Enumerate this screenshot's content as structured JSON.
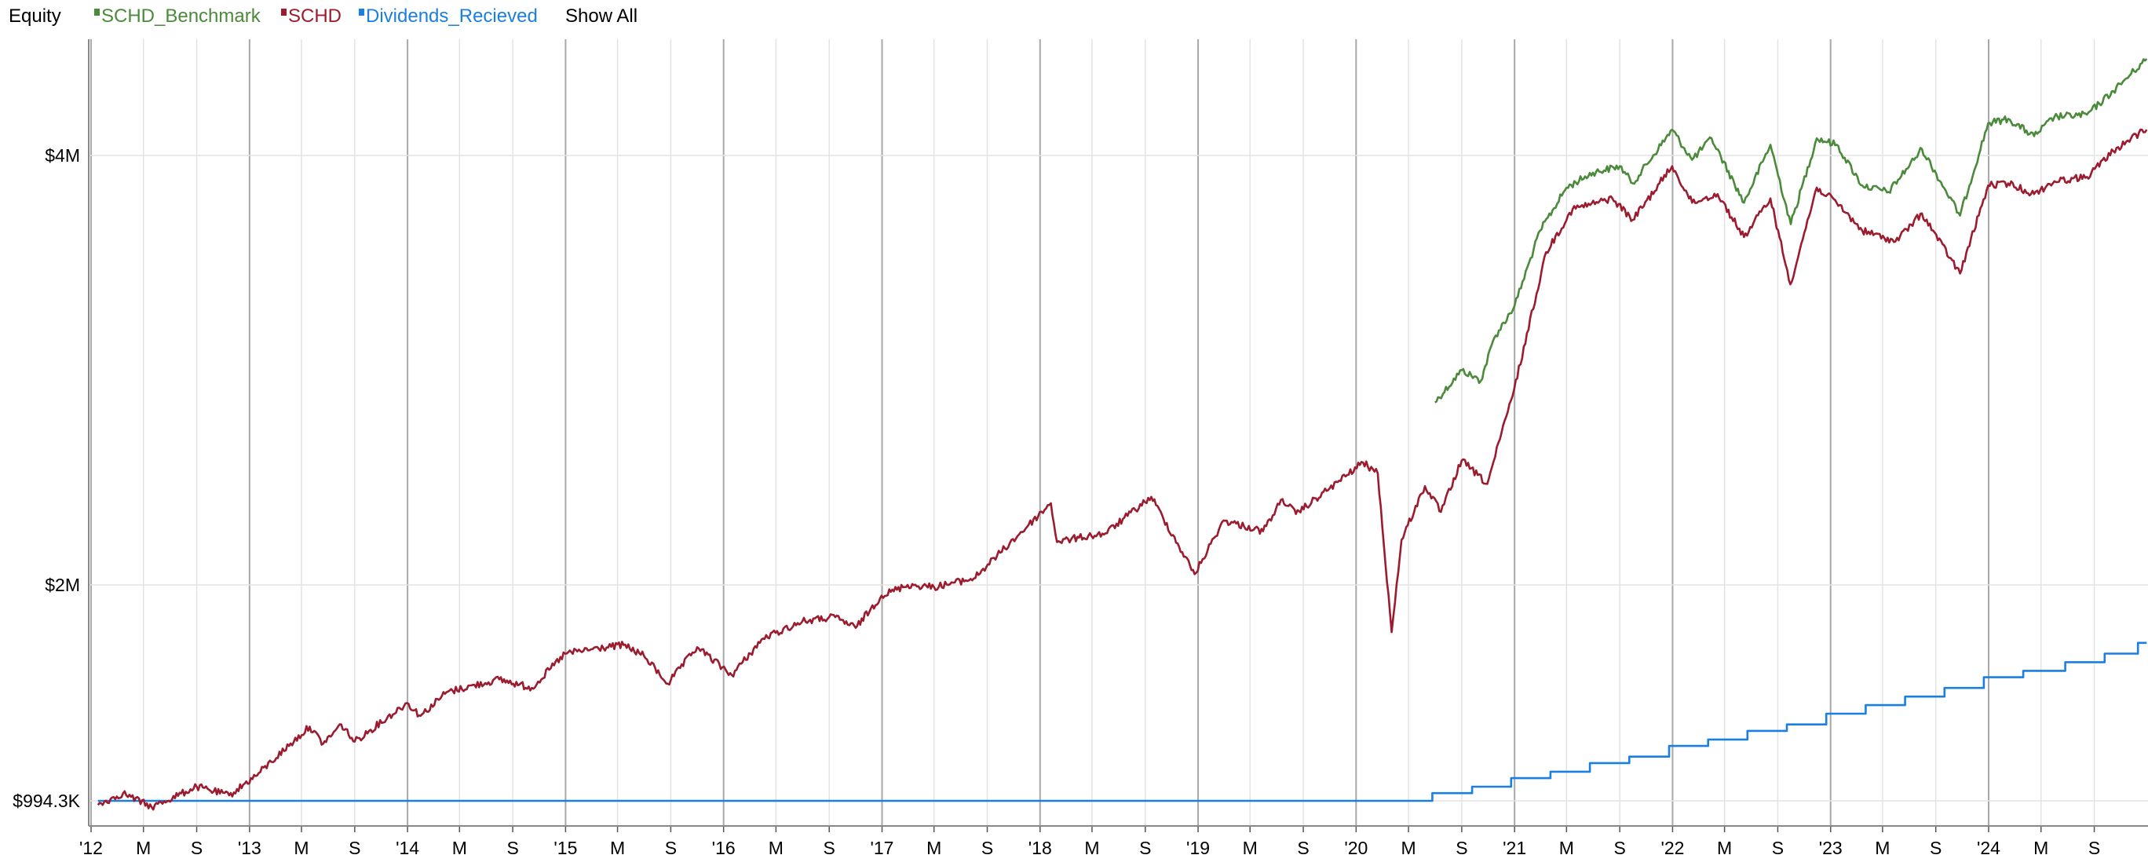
{
  "legend": {
    "title": "Equity",
    "items": [
      {
        "label": "SCHD_Benchmark",
        "color": "#4a8a3a"
      },
      {
        "label": "SCHD",
        "color": "#9b1c2e"
      },
      {
        "label": "Dividends_Recieved",
        "color": "#1a7fe0"
      }
    ],
    "show_all": "Show All"
  },
  "chart_data": {
    "type": "line",
    "title": "",
    "xlabel": "",
    "ylabel": "",
    "x_range": [
      "2012-01-17",
      "2024-12-31"
    ],
    "y_range": [
      950000,
      4350000
    ],
    "y_ticks": [
      {
        "value": 994300,
        "label": "$994.3K"
      },
      {
        "value": 2000000,
        "label": "$2M"
      },
      {
        "value": 4000000,
        "label": "$4M"
      }
    ],
    "x_ticks": [
      {
        "date": "2012-01-01",
        "label": "'12",
        "major": true
      },
      {
        "date": "2012-05-01",
        "label": "M",
        "major": false
      },
      {
        "date": "2012-09-01",
        "label": "S",
        "major": false
      },
      {
        "date": "2013-01-01",
        "label": "'13",
        "major": true
      },
      {
        "date": "2013-05-01",
        "label": "M",
        "major": false
      },
      {
        "date": "2013-09-01",
        "label": "S",
        "major": false
      },
      {
        "date": "2014-01-01",
        "label": "'14",
        "major": true
      },
      {
        "date": "2014-05-01",
        "label": "M",
        "major": false
      },
      {
        "date": "2014-09-01",
        "label": "S",
        "major": false
      },
      {
        "date": "2015-01-01",
        "label": "'15",
        "major": true
      },
      {
        "date": "2015-05-01",
        "label": "M",
        "major": false
      },
      {
        "date": "2015-09-01",
        "label": "S",
        "major": false
      },
      {
        "date": "2016-01-01",
        "label": "'16",
        "major": true
      },
      {
        "date": "2016-05-01",
        "label": "M",
        "major": false
      },
      {
        "date": "2016-09-01",
        "label": "S",
        "major": false
      },
      {
        "date": "2017-01-01",
        "label": "'17",
        "major": true
      },
      {
        "date": "2017-05-01",
        "label": "M",
        "major": false
      },
      {
        "date": "2017-09-01",
        "label": "S",
        "major": false
      },
      {
        "date": "2018-01-01",
        "label": "'18",
        "major": true
      },
      {
        "date": "2018-05-01",
        "label": "M",
        "major": false
      },
      {
        "date": "2018-09-01",
        "label": "S",
        "major": false
      },
      {
        "date": "2019-01-01",
        "label": "'19",
        "major": true
      },
      {
        "date": "2019-05-01",
        "label": "M",
        "major": false
      },
      {
        "date": "2019-09-01",
        "label": "S",
        "major": false
      },
      {
        "date": "2020-01-01",
        "label": "'20",
        "major": true
      },
      {
        "date": "2020-05-01",
        "label": "M",
        "major": false
      },
      {
        "date": "2020-09-01",
        "label": "S",
        "major": false
      },
      {
        "date": "2021-01-01",
        "label": "'21",
        "major": true
      },
      {
        "date": "2021-05-01",
        "label": "M",
        "major": false
      },
      {
        "date": "2021-09-01",
        "label": "S",
        "major": false
      },
      {
        "date": "2022-01-01",
        "label": "'22",
        "major": true
      },
      {
        "date": "2022-05-01",
        "label": "M",
        "major": false
      },
      {
        "date": "2022-09-01",
        "label": "S",
        "major": false
      },
      {
        "date": "2023-01-01",
        "label": "'23",
        "major": true
      },
      {
        "date": "2023-05-01",
        "label": "M",
        "major": false
      },
      {
        "date": "2023-09-01",
        "label": "S",
        "major": false
      },
      {
        "date": "2024-01-01",
        "label": "'24",
        "major": true
      },
      {
        "date": "2024-05-01",
        "label": "M",
        "major": false
      },
      {
        "date": "2024-09-01",
        "label": "S",
        "major": false
      }
    ],
    "grid": true,
    "legend_position": "top-left",
    "series": [
      {
        "name": "SCHD_Benchmark",
        "color": "#4a8a3a",
        "points": [
          [
            "2020-07-01",
            2850000
          ],
          [
            "2020-09-01",
            3000000
          ],
          [
            "2020-10-15",
            2950000
          ],
          [
            "2020-11-15",
            3150000
          ],
          [
            "2021-01-01",
            3300000
          ],
          [
            "2021-03-01",
            3650000
          ],
          [
            "2021-05-01",
            3850000
          ],
          [
            "2021-07-01",
            3920000
          ],
          [
            "2021-09-01",
            3950000
          ],
          [
            "2021-10-01",
            3870000
          ],
          [
            "2021-12-31",
            4120000
          ],
          [
            "2022-02-15",
            3980000
          ],
          [
            "2022-04-01",
            4080000
          ],
          [
            "2022-06-15",
            3780000
          ],
          [
            "2022-08-15",
            4050000
          ],
          [
            "2022-10-01",
            3680000
          ],
          [
            "2022-11-30",
            4080000
          ],
          [
            "2023-01-15",
            4050000
          ],
          [
            "2023-03-15",
            3860000
          ],
          [
            "2023-05-15",
            3830000
          ],
          [
            "2023-07-31",
            4030000
          ],
          [
            "2023-10-27",
            3720000
          ],
          [
            "2023-12-31",
            4150000
          ],
          [
            "2024-02-15",
            4170000
          ],
          [
            "2024-04-15",
            4090000
          ],
          [
            "2024-06-01",
            4180000
          ],
          [
            "2024-08-15",
            4190000
          ],
          [
            "2024-10-15",
            4300000
          ],
          [
            "2024-11-25",
            4380000
          ],
          [
            "2024-12-31",
            4450000
          ]
        ]
      },
      {
        "name": "SCHD",
        "color": "#9b1c2e",
        "points": [
          [
            "2012-01-17",
            975000
          ],
          [
            "2012-03-15",
            1030000
          ],
          [
            "2012-05-20",
            965000
          ],
          [
            "2012-09-01",
            1060000
          ],
          [
            "2012-11-15",
            1020000
          ],
          [
            "2013-01-15",
            1110000
          ],
          [
            "2013-05-20",
            1340000
          ],
          [
            "2013-06-20",
            1260000
          ],
          [
            "2013-08-01",
            1350000
          ],
          [
            "2013-09-01",
            1270000
          ],
          [
            "2013-12-31",
            1450000
          ],
          [
            "2014-01-31",
            1390000
          ],
          [
            "2014-04-01",
            1500000
          ],
          [
            "2014-08-01",
            1560000
          ],
          [
            "2014-10-15",
            1520000
          ],
          [
            "2014-12-31",
            1680000
          ],
          [
            "2015-03-01",
            1700000
          ],
          [
            "2015-05-15",
            1720000
          ],
          [
            "2015-07-01",
            1670000
          ],
          [
            "2015-08-25",
            1540000
          ],
          [
            "2015-11-01",
            1710000
          ],
          [
            "2016-01-20",
            1580000
          ],
          [
            "2016-04-01",
            1750000
          ],
          [
            "2016-07-01",
            1830000
          ],
          [
            "2016-09-15",
            1850000
          ],
          [
            "2016-11-01",
            1800000
          ],
          [
            "2016-12-31",
            1950000
          ],
          [
            "2017-03-01",
            2000000
          ],
          [
            "2017-05-01",
            1990000
          ],
          [
            "2017-08-01",
            2030000
          ],
          [
            "2017-10-01",
            2150000
          ],
          [
            "2018-01-26",
            2380000
          ],
          [
            "2018-02-09",
            2200000
          ],
          [
            "2018-04-01",
            2220000
          ],
          [
            "2018-06-01",
            2240000
          ],
          [
            "2018-09-15",
            2410000
          ],
          [
            "2018-12-24",
            2050000
          ],
          [
            "2019-03-01",
            2300000
          ],
          [
            "2019-05-31",
            2250000
          ],
          [
            "2019-07-15",
            2400000
          ],
          [
            "2019-08-15",
            2330000
          ],
          [
            "2019-11-01",
            2450000
          ],
          [
            "2020-01-17",
            2570000
          ],
          [
            "2020-02-20",
            2520000
          ],
          [
            "2020-03-23",
            1780000
          ],
          [
            "2020-04-15",
            2210000
          ],
          [
            "2020-06-08",
            2460000
          ],
          [
            "2020-07-15",
            2340000
          ],
          [
            "2020-09-01",
            2580000
          ],
          [
            "2020-10-30",
            2470000
          ],
          [
            "2020-12-31",
            2910000
          ],
          [
            "2021-03-15",
            3550000
          ],
          [
            "2021-05-15",
            3750000
          ],
          [
            "2021-08-15",
            3800000
          ],
          [
            "2021-10-01",
            3700000
          ],
          [
            "2021-12-31",
            3950000
          ],
          [
            "2022-02-15",
            3780000
          ],
          [
            "2022-04-15",
            3820000
          ],
          [
            "2022-06-15",
            3620000
          ],
          [
            "2022-08-15",
            3800000
          ],
          [
            "2022-09-30",
            3400000
          ],
          [
            "2022-11-30",
            3850000
          ],
          [
            "2023-01-15",
            3780000
          ],
          [
            "2023-03-15",
            3650000
          ],
          [
            "2023-05-31",
            3600000
          ],
          [
            "2023-07-31",
            3730000
          ],
          [
            "2023-10-27",
            3450000
          ],
          [
            "2023-12-31",
            3860000
          ],
          [
            "2024-02-15",
            3870000
          ],
          [
            "2024-04-15",
            3820000
          ],
          [
            "2024-06-01",
            3880000
          ],
          [
            "2024-08-15",
            3900000
          ],
          [
            "2024-10-15",
            4020000
          ],
          [
            "2024-11-25",
            4080000
          ],
          [
            "2024-12-31",
            4120000
          ]
        ]
      },
      {
        "name": "Dividends_Recieved",
        "color": "#1a7fe0",
        "step": true,
        "points": [
          [
            "2012-01-17",
            994300
          ],
          [
            "2020-06-25",
            994300
          ],
          [
            "2020-06-25",
            1030000
          ],
          [
            "2020-09-25",
            1060000
          ],
          [
            "2020-12-24",
            1100000
          ],
          [
            "2021-03-25",
            1130000
          ],
          [
            "2021-06-24",
            1170000
          ],
          [
            "2021-09-23",
            1200000
          ],
          [
            "2021-12-24",
            1250000
          ],
          [
            "2022-03-24",
            1280000
          ],
          [
            "2022-06-23",
            1320000
          ],
          [
            "2022-09-22",
            1350000
          ],
          [
            "2022-12-22",
            1400000
          ],
          [
            "2023-03-23",
            1440000
          ],
          [
            "2023-06-22",
            1480000
          ],
          [
            "2023-09-21",
            1520000
          ],
          [
            "2023-12-21",
            1570000
          ],
          [
            "2024-03-21",
            1600000
          ],
          [
            "2024-06-26",
            1640000
          ],
          [
            "2024-09-25",
            1680000
          ],
          [
            "2024-12-11",
            1730000
          ],
          [
            "2024-12-31",
            1730000
          ]
        ]
      }
    ]
  }
}
